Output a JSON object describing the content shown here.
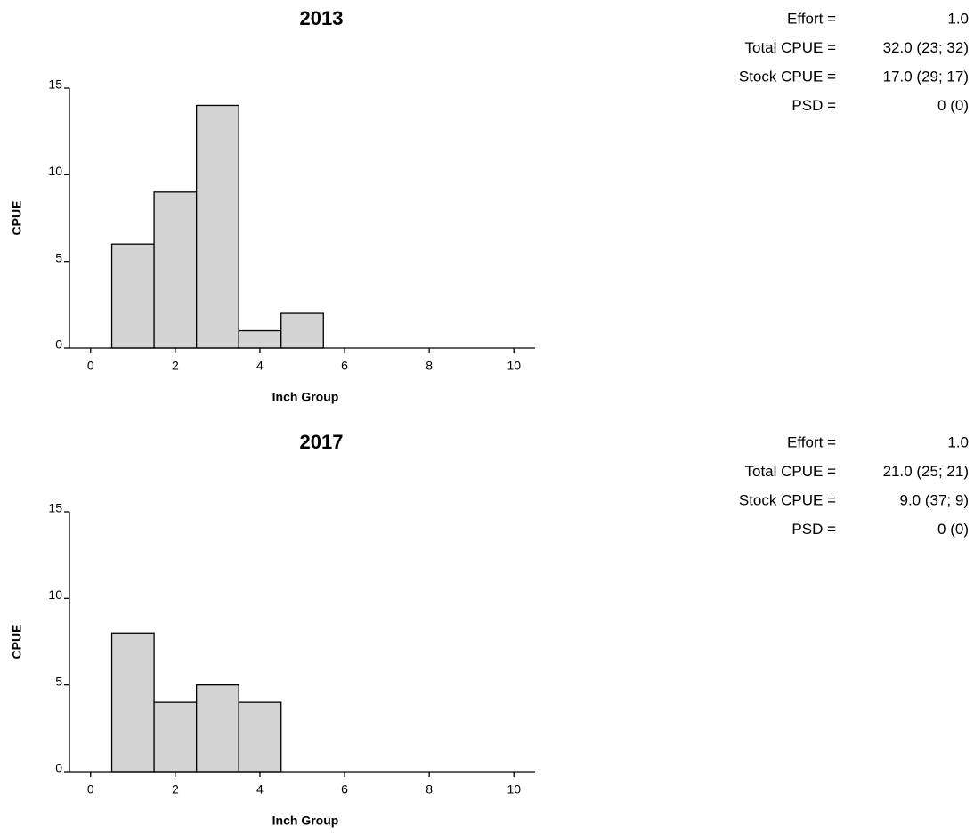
{
  "chart_data": [
    {
      "type": "histogram",
      "title": "2013",
      "bins": [
        0.5,
        1.5,
        2.5,
        3.5,
        4.5,
        5.5
      ],
      "values": [
        6,
        9,
        14,
        1,
        2
      ],
      "color": "#d3d3d3",
      "xlabel": "Inch Group",
      "ylabel": "CPUE",
      "xlim": [
        -0.5,
        10.5
      ],
      "ylim": [
        0,
        15
      ],
      "xticks": [
        0,
        2,
        4,
        6,
        8,
        10
      ],
      "yticks": [
        0,
        5,
        10,
        15
      ],
      "annotations": [
        {
          "label": "Effort =",
          "value": "1.0"
        },
        {
          "label": "Total CPUE =",
          "value": "32.0 (23; 32)"
        },
        {
          "label": "Stock CPUE =",
          "value": "17.0 (29; 17)"
        },
        {
          "label": "PSD =",
          "value": "0 (0)"
        }
      ]
    },
    {
      "type": "histogram",
      "title": "2017",
      "bins": [
        0.5,
        1.5,
        2.5,
        3.5,
        4.5
      ],
      "values": [
        8,
        4,
        5,
        4
      ],
      "color": "#d3d3d3",
      "xlabel": "Inch Group",
      "ylabel": "CPUE",
      "xlim": [
        -0.5,
        10.5
      ],
      "ylim": [
        0,
        15
      ],
      "xticks": [
        0,
        2,
        4,
        6,
        8,
        10
      ],
      "yticks": [
        0,
        5,
        10,
        15
      ],
      "annotations": [
        {
          "label": "Effort =",
          "value": "1.0"
        },
        {
          "label": "Total CPUE =",
          "value": "21.0 (25; 21)"
        },
        {
          "label": "Stock CPUE =",
          "value": "9.0 (37; 9)"
        },
        {
          "label": "PSD =",
          "value": "0 (0)"
        }
      ]
    }
  ]
}
